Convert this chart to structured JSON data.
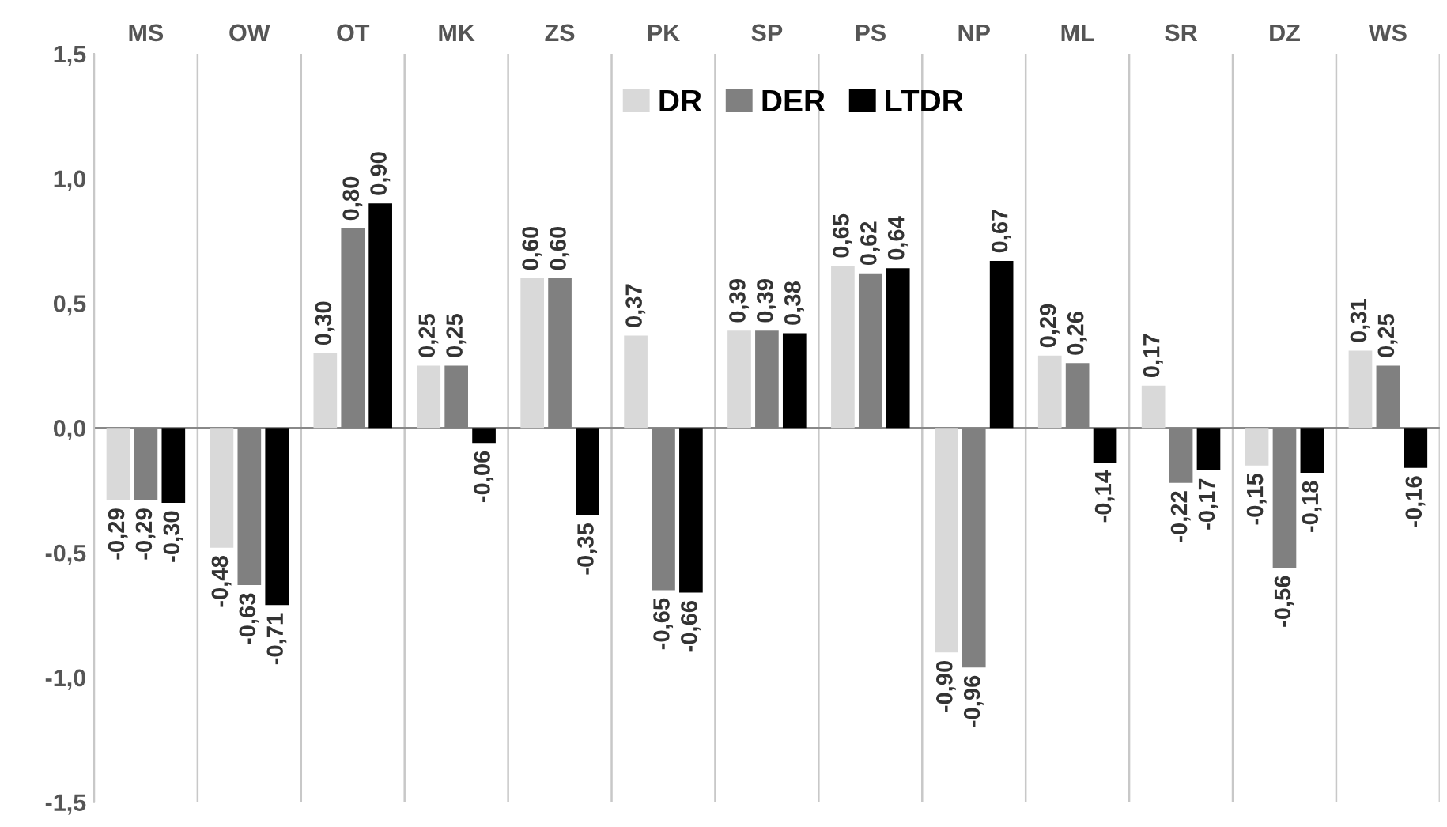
{
  "chart_data": {
    "type": "bar",
    "categories": [
      "MS",
      "OW",
      "OT",
      "MK",
      "ZS",
      "PK",
      "SP",
      "PS",
      "NP",
      "ML",
      "SR",
      "DZ",
      "WS"
    ],
    "series": [
      {
        "name": "DR",
        "color": "#d9d9d9",
        "values": [
          -0.29,
          -0.48,
          0.3,
          0.25,
          0.6,
          0.37,
          0.39,
          0.65,
          -0.9,
          0.29,
          0.17,
          -0.15,
          0.31
        ],
        "value_labels": [
          "-0,29",
          "-0,48",
          "0,30",
          "0,25",
          "0,60",
          "0,37",
          "0,39",
          "0,65",
          "-0,90",
          "0,29",
          "0,17",
          "-0,15",
          "0,31"
        ]
      },
      {
        "name": "DER",
        "color": "#808080",
        "values": [
          -0.29,
          -0.63,
          0.8,
          0.25,
          0.6,
          -0.65,
          0.39,
          0.62,
          -0.96,
          0.26,
          -0.22,
          -0.56,
          0.25
        ],
        "value_labels": [
          "-0,29",
          "-0,63",
          "0,80",
          "0,25",
          "0,60",
          "-0,65",
          "0,39",
          "0,62",
          "-0,96",
          "0,26",
          "-0,22",
          "-0,56",
          "0,25"
        ]
      },
      {
        "name": "LTDR",
        "color": "#000000",
        "values": [
          -0.3,
          -0.71,
          0.9,
          -0.06,
          -0.35,
          -0.66,
          0.38,
          0.64,
          0.67,
          -0.14,
          -0.17,
          -0.18,
          -0.16
        ],
        "value_labels": [
          "-0,30",
          "-0,71",
          "0,90",
          "-0,06",
          "-0,35",
          "-0,66",
          "0,38",
          "0,64",
          "0,67",
          "-0,14",
          "-0,17",
          "-0,18",
          "-0,16"
        ]
      }
    ],
    "ylim": [
      -1.5,
      1.5
    ],
    "yticks": [
      {
        "value": -1.5,
        "label": "-1,5"
      },
      {
        "value": -1.0,
        "label": "-1,0"
      },
      {
        "value": -0.5,
        "label": "-0,5"
      },
      {
        "value": 0.0,
        "label": "0,0"
      },
      {
        "value": 0.5,
        "label": "0,5"
      },
      {
        "value": 1.0,
        "label": "1,0"
      },
      {
        "value": 1.5,
        "label": "1,5"
      }
    ],
    "grid": "x",
    "legend": "top"
  }
}
